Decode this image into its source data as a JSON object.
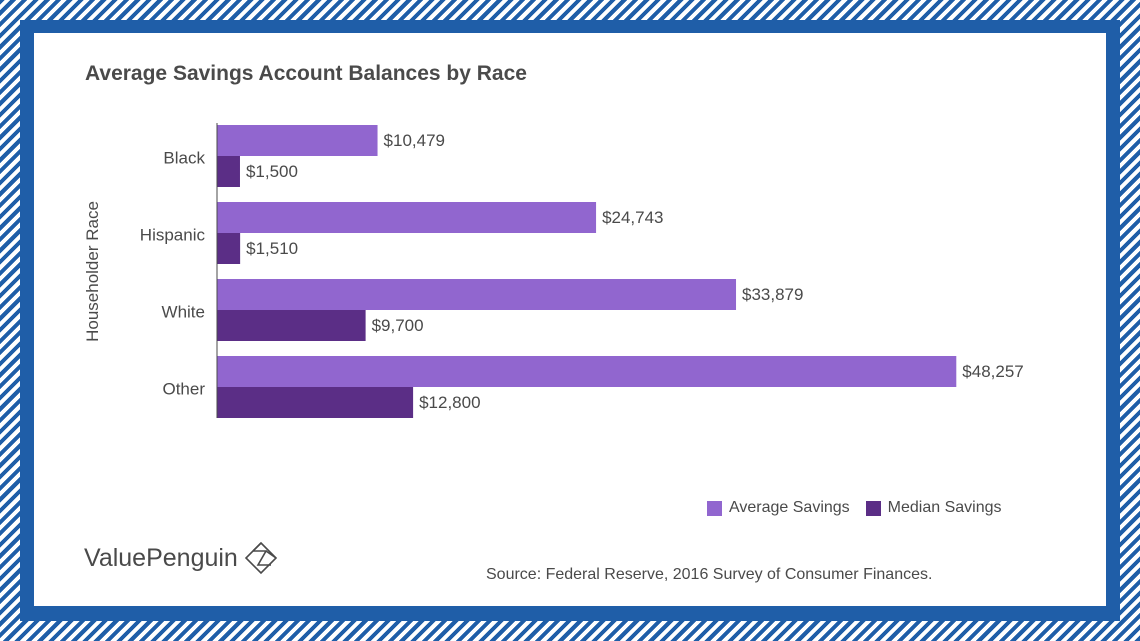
{
  "title": "Average Savings Account Balances by Race",
  "chart_data": {
    "type": "bar",
    "orientation": "horizontal",
    "title": "Average Savings Account Balances by Race",
    "ylabel": "Householder Race",
    "xlabel": "",
    "categories": [
      "Black",
      "Hispanic",
      "White",
      "Other"
    ],
    "series": [
      {
        "name": "Average Savings",
        "color": "#9166cf",
        "values": [
          10479,
          24743,
          33879,
          48257
        ],
        "labels": [
          "$10,479",
          "$24,743",
          "$33,879",
          "$48,257"
        ]
      },
      {
        "name": "Median Savings",
        "color": "#5b2e86",
        "values": [
          1500,
          1510,
          9700,
          12800
        ],
        "labels": [
          "$1,500",
          "$1,510",
          "$9,700",
          "$12,800"
        ]
      }
    ],
    "xlim": [
      0,
      50000
    ],
    "grid": false,
    "legend_position": "bottom-right"
  },
  "brand": {
    "name": "ValuePenguin",
    "logo_icon": "penguin-diamond-logo"
  },
  "source": "Source: Federal Reserve, 2016 Survey of Consumer Finances.",
  "colors": {
    "frame": "#1f5ea8",
    "text": "#4a4a4a",
    "average": "#9166cf",
    "median": "#5b2e86"
  }
}
